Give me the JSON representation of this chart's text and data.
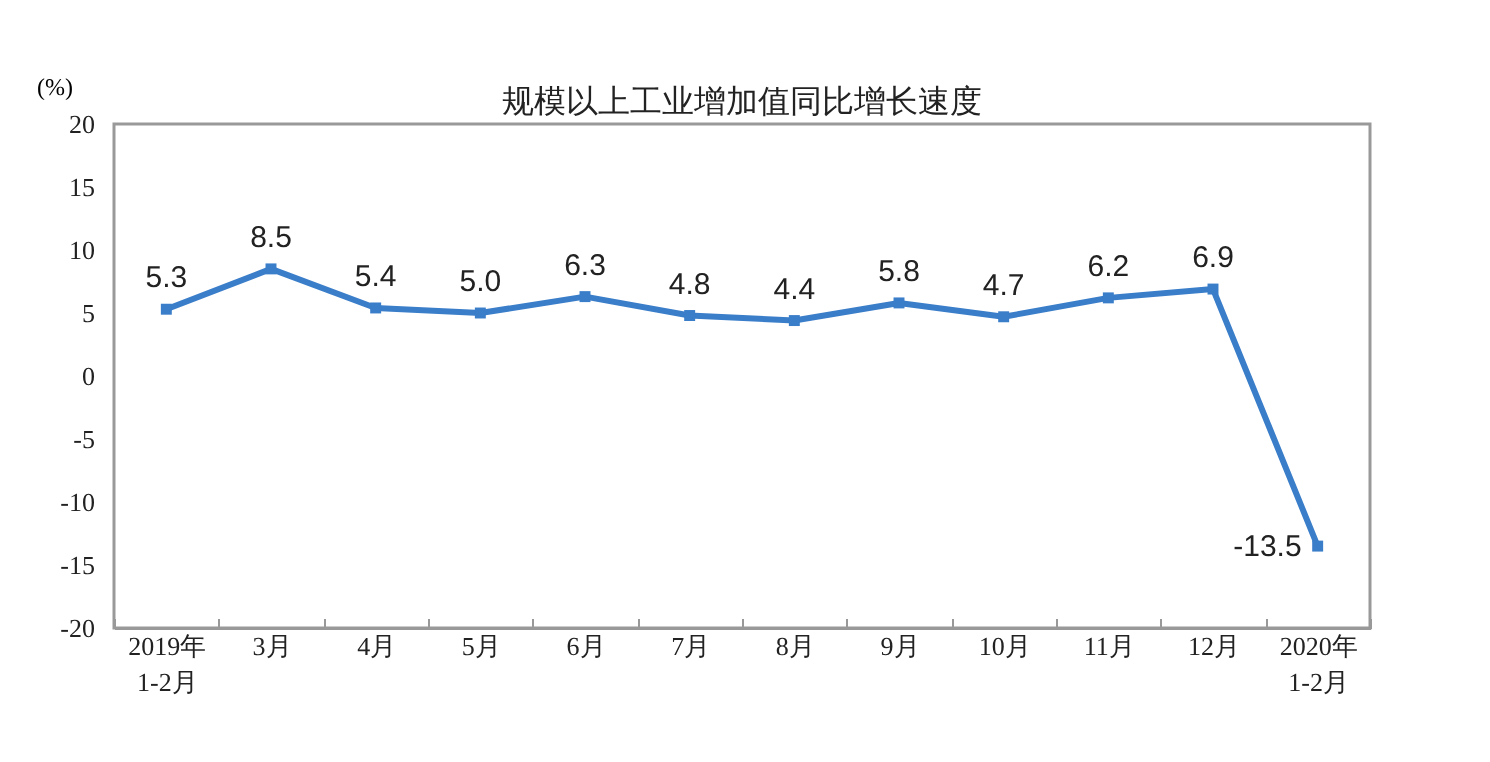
{
  "chart_data": {
    "type": "line",
    "title": "规模以上工业增加值同比增长速度",
    "ylabel": "(%)",
    "categories": [
      "2019年\n1-2月",
      "3月",
      "4月",
      "5月",
      "6月",
      "7月",
      "8月",
      "9月",
      "10月",
      "11月",
      "12月",
      "2020年\n1-2月"
    ],
    "series": [
      {
        "color": "#3a7dc9",
        "values": [
          5.3,
          8.5,
          5.4,
          5.0,
          6.3,
          4.8,
          4.4,
          5.8,
          4.7,
          6.2,
          6.9,
          -13.5
        ],
        "value_labels": [
          "5.3",
          "8.5",
          "5.4",
          "5.0",
          "6.3",
          "4.8",
          "4.4",
          "5.8",
          "4.7",
          "6.2",
          "6.9",
          "-13.5"
        ]
      }
    ],
    "ylim": [
      -20,
      20
    ],
    "yticks": [
      -20,
      -15,
      -10,
      -5,
      0,
      5,
      10,
      15,
      20
    ],
    "grid": false,
    "legend": false,
    "marker": "square",
    "line_style": "solid"
  }
}
